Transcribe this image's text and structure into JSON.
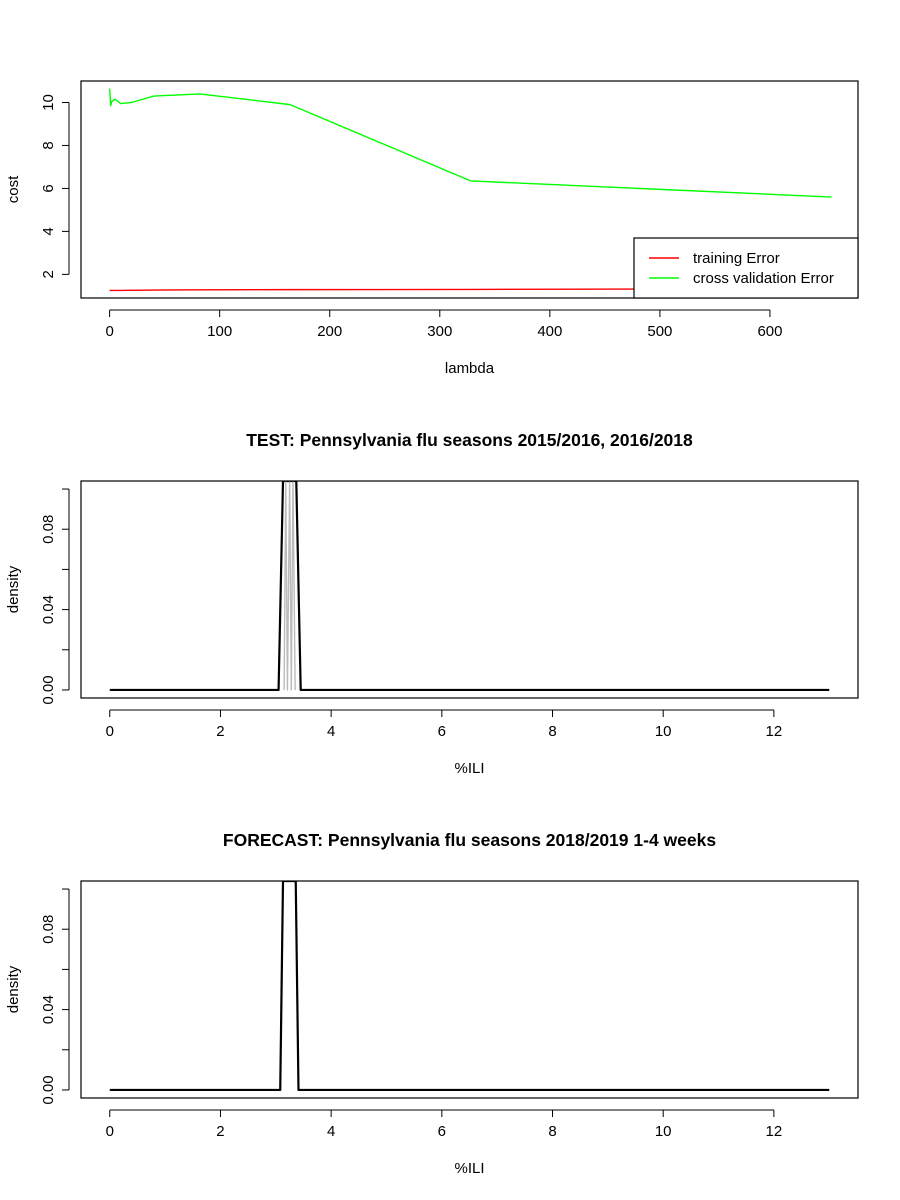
{
  "chart_data": [
    {
      "type": "line",
      "title": "",
      "xlabel": "lambda",
      "ylabel": "cost",
      "xlim": [
        -26,
        680
      ],
      "ylim": [
        0.9,
        11.0
      ],
      "xticks": [
        0,
        100,
        200,
        300,
        400,
        500,
        600
      ],
      "xtick_labels": [
        "0",
        "100",
        "200",
        "300",
        "400",
        "500",
        "600"
      ],
      "yticks": [
        2,
        4,
        6,
        8,
        10
      ],
      "ytick_labels": [
        "2",
        "4",
        "6",
        "8",
        "10"
      ],
      "legend_position": "bottom-right",
      "series": [
        {
          "name": "training Error",
          "color": "#ff0000",
          "x": [
            0,
            1,
            2,
            5,
            10,
            20,
            40,
            82,
            164,
            328,
            656
          ],
          "y": [
            1.25,
            1.25,
            1.25,
            1.25,
            1.25,
            1.26,
            1.27,
            1.28,
            1.29,
            1.3,
            1.33
          ]
        },
        {
          "name": "cross validation Error",
          "color": "#00ff00",
          "x": [
            0,
            1,
            2,
            5,
            10,
            20,
            40,
            82,
            164,
            328,
            656
          ],
          "y": [
            10.65,
            9.85,
            10.05,
            10.15,
            9.95,
            10.0,
            10.3,
            10.4,
            9.9,
            6.35,
            5.6
          ]
        }
      ]
    },
    {
      "type": "line",
      "title": "TEST: Pennsylvania  flu seasons 2015/2016, 2016/2018",
      "xlabel": "%ILI",
      "ylabel": "density",
      "xlim": [
        -0.52,
        13.52
      ],
      "ylim": [
        -0.004,
        0.104
      ],
      "xticks": [
        0,
        2,
        4,
        6,
        8,
        10,
        12
      ],
      "xtick_labels": [
        "0",
        "2",
        "4",
        "6",
        "8",
        "10",
        "12"
      ],
      "yticks": [
        0.0,
        0.02,
        0.04,
        0.06,
        0.08,
        0.1
      ],
      "ytick_labels": [
        "0.00",
        "",
        "0.04",
        "",
        "0.08",
        ""
      ],
      "series": [
        {
          "color": "#000000",
          "x": [
            0,
            3.05,
            3.13,
            3.15,
            3.35,
            3.37,
            3.45,
            13
          ],
          "y": [
            0,
            0,
            0.104,
            0.104,
            0.104,
            0.104,
            0,
            0
          ]
        },
        {
          "color": "#bbbbbb",
          "x": [
            3.15,
            3.18,
            3.21,
            3.25,
            3.28,
            3.31,
            3.35
          ],
          "y": [
            0,
            0.104,
            0,
            0.104,
            0,
            0.104,
            0
          ]
        }
      ]
    },
    {
      "type": "line",
      "title": "FORECAST: Pennsylvania flu seasons 2018/2019 1-4 weeks",
      "xlabel": "%ILI",
      "ylabel": "density",
      "xlim": [
        -0.52,
        13.52
      ],
      "ylim": [
        -0.004,
        0.104
      ],
      "xticks": [
        0,
        2,
        4,
        6,
        8,
        10,
        12
      ],
      "xtick_labels": [
        "0",
        "2",
        "4",
        "6",
        "8",
        "10",
        "12"
      ],
      "yticks": [
        0.0,
        0.02,
        0.04,
        0.06,
        0.08,
        0.1
      ],
      "ytick_labels": [
        "0.00",
        "",
        "0.04",
        "",
        "0.08",
        ""
      ],
      "series": [
        {
          "color": "#000000",
          "x": [
            0,
            3.08,
            3.13,
            3.15,
            3.33,
            3.36,
            3.41,
            13
          ],
          "y": [
            0,
            0,
            0.104,
            0.104,
            0.104,
            0.104,
            0,
            0
          ]
        }
      ]
    }
  ]
}
